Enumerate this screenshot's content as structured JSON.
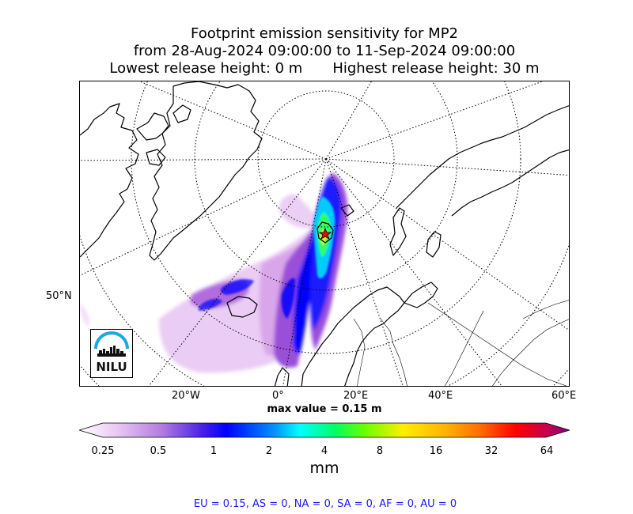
{
  "title": {
    "line1": "Footprint emission sensitivity for MP2",
    "line2": "from 28-Aug-2024 09:00:00 to 11-Sep-2024 09:00:00",
    "line3_left": "Lowest release height: 0 m",
    "line3_right": "Highest release height: 30 m"
  },
  "axes": {
    "x_ticks": [
      "20°W",
      "0°",
      "20°E",
      "40°E",
      "60°E"
    ],
    "y_ticks": [
      "50°N"
    ]
  },
  "max_value": "max value = 0.15 m",
  "colorbar": {
    "ticks": [
      "0.25",
      "0.5",
      "1",
      "2",
      "4",
      "8",
      "16",
      "32",
      "64"
    ],
    "unit": "mm",
    "scale": "log2",
    "colors": [
      "#ffffff",
      "#d9a6ea",
      "#9a4fd8",
      "#0000ff",
      "#0096ff",
      "#00ffff",
      "#00ff66",
      "#99ff00",
      "#ffff00",
      "#ffb000",
      "#ff6a00",
      "#ff0000",
      "#c8004a",
      "#8a007a"
    ]
  },
  "regions_text": "EU = 0.15,  AS = 0,  NA = 0,  SA = 0,  AF = 0,  AU = 0",
  "logo": {
    "text": "NILU"
  },
  "map": {
    "projection": "polar-stereographic",
    "release_site_marker": "red star",
    "coastline_color": "#000000",
    "graticule": "dotted"
  }
}
